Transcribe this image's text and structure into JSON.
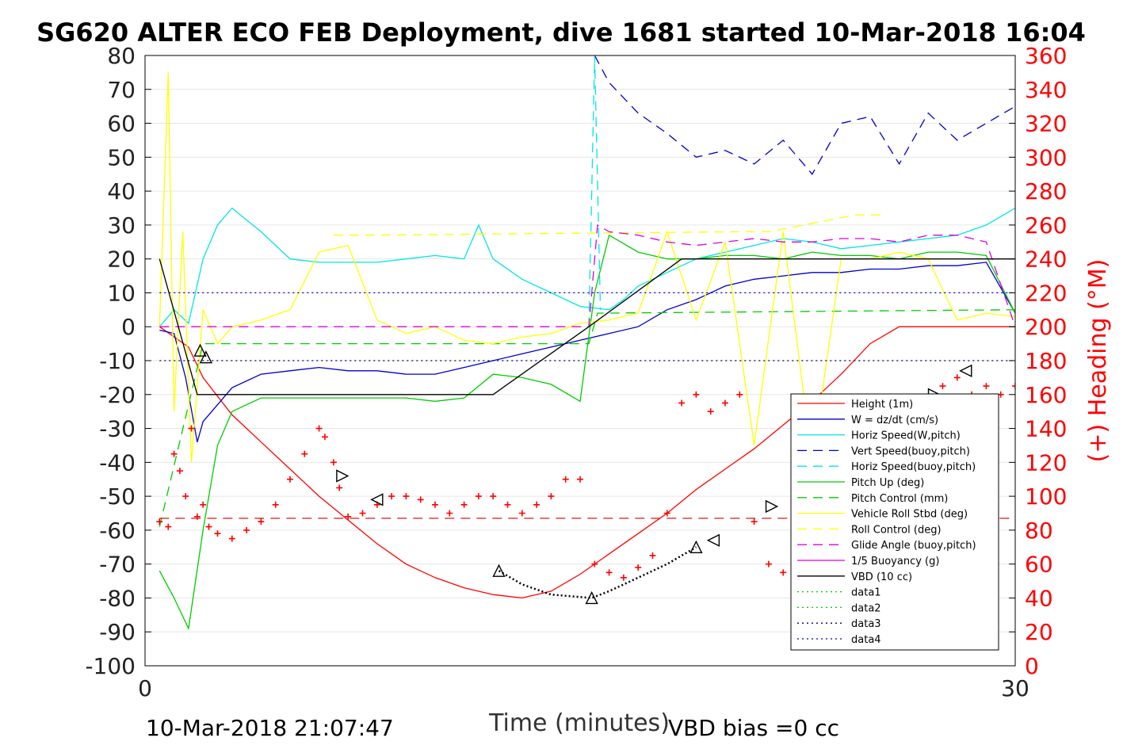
{
  "chart_data": {
    "type": "line",
    "title": "SG620 ALTER ECO FEB Deployment, dive 1681 started 10-Mar-2018 16:04",
    "xlabel": "Time (minutes)",
    "ylabel": "",
    "y2label": "(+) Heading (°M)",
    "xlim": [
      0,
      30
    ],
    "ylim": [
      -100,
      80
    ],
    "y2lim": [
      0,
      360
    ],
    "x_ticks": [
      "0",
      "30"
    ],
    "y_ticks": [
      "80",
      "70",
      "60",
      "50",
      "40",
      "30",
      "20",
      "10",
      "0",
      "-10",
      "-20",
      "-30",
      "-40",
      "-50",
      "-60",
      "-70",
      "-80",
      "-90",
      "-100"
    ],
    "y2_ticks": [
      "360",
      "340",
      "320",
      "300",
      "280",
      "260",
      "240",
      "220",
      "200",
      "180",
      "160",
      "140",
      "120",
      "100",
      "80",
      "60",
      "40",
      "20",
      "0"
    ],
    "grid": true,
    "legend_position": "bottom-right",
    "footer_left": "10-Mar-2018 21:07:47",
    "footer_right": "VBD bias =0 cc",
    "legend": [
      {
        "label": "Height (1m)",
        "color": "#ff0000",
        "style": "solid"
      },
      {
        "label": "W = dz/dt (cm/s)",
        "color": "#0000cc",
        "style": "solid"
      },
      {
        "label": "Horiz Speed(W,pitch)",
        "color": "#00e5e5",
        "style": "solid"
      },
      {
        "label": "Vert Speed(buoy,pitch)",
        "color": "#0000cc",
        "style": "dashed"
      },
      {
        "label": "Horiz Speed(buoy,pitch)",
        "color": "#00e5e5",
        "style": "dashed"
      },
      {
        "label": "Pitch Up (deg)",
        "color": "#00cc00",
        "style": "solid"
      },
      {
        "label": "Pitch Control (mm)",
        "color": "#00cc00",
        "style": "dashed"
      },
      {
        "label": "Vehicle Roll Stbd (deg)",
        "color": "#ffff00",
        "style": "solid"
      },
      {
        "label": "Roll Control (deg)",
        "color": "#ffff00",
        "style": "dashed"
      },
      {
        "label": "Glide Angle (buoy,pitch)",
        "color": "#dd00dd",
        "style": "dashed"
      },
      {
        "label": "1/5 Buoyancy (g)",
        "color": "#dd00dd",
        "style": "solid"
      },
      {
        "label": "VBD (10 cc)",
        "color": "#000000",
        "style": "solid"
      },
      {
        "label": "data1",
        "color": "#00cc00",
        "style": "dotted"
      },
      {
        "label": "data2",
        "color": "#00cc00",
        "style": "dotted"
      },
      {
        "label": "data3",
        "color": "#000066",
        "style": "dotted"
      },
      {
        "label": "data4",
        "color": "#0000cc",
        "style": "dotted"
      }
    ],
    "series": [
      {
        "key": "height",
        "color": "#ff0000",
        "style": "solid",
        "x": [
          0.5,
          1.5,
          2,
          3,
          4,
          5,
          6,
          7,
          8,
          9,
          10,
          11,
          12,
          13,
          14,
          15,
          16,
          17,
          18,
          19,
          20,
          21,
          22,
          23,
          24,
          25,
          26,
          27,
          28,
          29,
          30
        ],
        "y": [
          0,
          -6,
          -15,
          -26,
          -34,
          -42,
          -50,
          -57,
          -64,
          -70,
          -74,
          -77,
          -79,
          -80,
          -78,
          -73,
          -67,
          -61,
          -55,
          -48,
          -42,
          -36,
          -29,
          -22,
          -14,
          -5,
          0,
          0,
          0,
          0,
          0
        ]
      },
      {
        "key": "w",
        "color": "#0000cc",
        "style": "solid",
        "x": [
          0.5,
          1,
          1.4,
          1.8,
          2,
          2.5,
          3,
          4,
          5,
          6,
          7,
          8,
          9,
          10,
          11,
          12,
          13,
          14,
          15,
          16,
          17,
          18,
          19,
          20,
          21,
          22,
          23,
          24,
          25,
          26,
          27,
          28,
          29,
          30
        ],
        "y": [
          -1,
          -2,
          -15,
          -34,
          -28,
          -23,
          -18,
          -14,
          -13,
          -12,
          -13,
          -13,
          -14,
          -14,
          -12,
          -10,
          -8,
          -6,
          -4,
          -2,
          0,
          5,
          8,
          12,
          14,
          15,
          16,
          16,
          17,
          17,
          18,
          18,
          19,
          4
        ]
      },
      {
        "key": "horiz_w",
        "color": "#00e5e5",
        "style": "solid",
        "x": [
          0.5,
          1,
          1.5,
          2,
          2.5,
          3,
          4,
          5,
          6,
          7,
          8,
          9,
          10,
          11,
          11.5,
          12,
          13,
          14,
          15,
          16,
          16.5,
          17,
          18,
          19,
          20,
          21,
          22,
          23,
          24,
          25,
          26,
          27,
          28,
          29,
          30
        ],
        "y": [
          0,
          5,
          1,
          20,
          30,
          35,
          28,
          20,
          19,
          19,
          19,
          20,
          21,
          20,
          30,
          20,
          14,
          10,
          6,
          5,
          8,
          12,
          16,
          20,
          22,
          24,
          26,
          25,
          23,
          24,
          25,
          26,
          27,
          30,
          35
        ]
      },
      {
        "key": "vert_buoy",
        "color": "#0000cc",
        "style": "dashed",
        "x": [
          15.5,
          16,
          17,
          18,
          19,
          20,
          21,
          22,
          23,
          24,
          25,
          26,
          27,
          28,
          29,
          30
        ],
        "y": [
          80,
          72,
          63,
          57,
          50,
          52,
          48,
          55,
          45,
          60,
          62,
          48,
          63,
          55,
          60,
          65
        ]
      },
      {
        "key": "horiz_buoy",
        "color": "#00e5e5",
        "style": "dashed",
        "x": [
          15.3,
          15.5,
          15.7
        ],
        "y": [
          0,
          80,
          5
        ]
      },
      {
        "key": "pitch_up",
        "color": "#00cc00",
        "style": "solid",
        "x": [
          0.5,
          1,
          1.5,
          2,
          2.5,
          3,
          4,
          5,
          6,
          7,
          8,
          9,
          10,
          11,
          12,
          13,
          14,
          15,
          15.5,
          16,
          17,
          18,
          19,
          20,
          21,
          22,
          23,
          24,
          25,
          26,
          27,
          28,
          29,
          30
        ],
        "y": [
          -72,
          -80,
          -89,
          -60,
          -35,
          -25,
          -21,
          -21,
          -21,
          -21,
          -21,
          -21,
          -22,
          -21,
          -14,
          -15,
          -17,
          -22,
          10,
          27,
          22,
          20,
          20,
          21,
          21,
          20,
          22,
          21,
          21,
          20,
          22,
          22,
          21,
          4
        ]
      },
      {
        "key": "pitch_control",
        "color": "#00cc00",
        "style": "dashed",
        "x": [
          0.5,
          2,
          10,
          13,
          15.3,
          15.6,
          30
        ],
        "y": [
          -59,
          -5,
          -5,
          -5,
          -5,
          4,
          5
        ]
      },
      {
        "key": "roll",
        "color": "#ffff00",
        "style": "solid",
        "x": [
          0.5,
          0.8,
          1,
          1.3,
          1.6,
          2,
          2.5,
          3,
          4,
          5,
          6,
          7,
          8,
          9,
          10,
          11,
          12,
          13,
          14,
          15,
          16,
          17,
          18,
          19,
          20,
          21,
          22,
          23,
          24,
          25,
          26,
          27,
          28,
          29,
          30
        ],
        "y": [
          0,
          75,
          -25,
          28,
          -40,
          5,
          -5,
          0,
          2,
          5,
          22,
          24,
          2,
          -2,
          0,
          -4,
          -5,
          -3,
          -2,
          1,
          2,
          4,
          28,
          2,
          25,
          -35,
          28,
          -40,
          20,
          20,
          22,
          20,
          2,
          4,
          3
        ]
      },
      {
        "key": "roll_control",
        "color": "#ffff00",
        "style": "dashed",
        "x": [
          6.5,
          7.5,
          20.5,
          21.5,
          24.5,
          25.5
        ],
        "y": [
          27,
          27,
          28,
          28,
          33,
          33
        ]
      },
      {
        "key": "glide",
        "color": "#dd00dd",
        "style": "dashed",
        "x": [
          0.5,
          15.3,
          15.6,
          16,
          17,
          18,
          19,
          20,
          21,
          22,
          23,
          24,
          25,
          26,
          27,
          28,
          29,
          30
        ],
        "y": [
          0,
          0,
          30,
          28,
          27,
          25,
          24,
          25,
          26,
          25,
          25,
          26,
          26,
          25,
          27,
          27,
          25,
          0
        ]
      },
      {
        "key": "vbd",
        "color": "#000000",
        "style": "solid",
        "x": [
          0.5,
          1.8,
          12,
          15.3,
          18.5,
          30
        ],
        "y": [
          20,
          -20,
          -20,
          0,
          20,
          20
        ]
      },
      {
        "key": "data3",
        "color": "#000066",
        "style": "dotted",
        "x": [
          0.5,
          30
        ],
        "y": [
          -10,
          -10
        ]
      },
      {
        "key": "data4",
        "color": "#0000cc",
        "style": "dotted",
        "x": [
          0.5,
          30
        ],
        "y": [
          10,
          10
        ]
      }
    ],
    "heading_mean": 87,
    "heading_points": {
      "x": [
        0.5,
        0.8,
        1,
        1.2,
        1.4,
        1.6,
        1.8,
        2,
        2.2,
        2.5,
        3,
        3.5,
        4,
        4.5,
        5,
        5.5,
        6,
        6.2,
        6.5,
        6.7,
        7,
        7.5,
        8,
        8.5,
        9,
        9.5,
        10,
        10.5,
        11,
        11.5,
        12,
        12.5,
        13,
        13.5,
        14,
        14.5,
        15,
        15.5,
        16,
        16.5,
        17,
        17.5,
        18,
        18.5,
        19,
        19.5,
        20,
        20.5,
        21,
        21.5,
        22,
        22.5,
        23,
        23.5,
        24,
        24.5,
        25,
        25.5,
        26,
        26.5,
        27,
        27.5,
        28,
        28.5,
        29,
        29.5,
        30
      ],
      "y": [
        85,
        82,
        125,
        115,
        100,
        140,
        88,
        95,
        82,
        78,
        75,
        80,
        85,
        95,
        110,
        125,
        140,
        135,
        120,
        105,
        88,
        90,
        95,
        100,
        100,
        98,
        95,
        90,
        95,
        100,
        100,
        95,
        90,
        95,
        100,
        110,
        110,
        60,
        55,
        52,
        58,
        65,
        90,
        155,
        160,
        150,
        155,
        160,
        85,
        60,
        55,
        62,
        65,
        60,
        55,
        50,
        60,
        115,
        150,
        140,
        155,
        165,
        170,
        160,
        165,
        160,
        165
      ]
    },
    "triangles": [
      {
        "x": 1.9,
        "y": -7,
        "dir": "up"
      },
      {
        "x": 2.1,
        "y": -9,
        "dir": "up"
      },
      {
        "x": 6.8,
        "y": -44,
        "dir": "right"
      },
      {
        "x": 8.0,
        "y": -51,
        "dir": "left"
      },
      {
        "x": 12.2,
        "y": -72,
        "dir": "up"
      },
      {
        "x": 15.4,
        "y": -80,
        "dir": "up"
      },
      {
        "x": 19.0,
        "y": -65,
        "dir": "up"
      },
      {
        "x": 19.6,
        "y": -63,
        "dir": "left"
      },
      {
        "x": 21.6,
        "y": -53,
        "dir": "right"
      },
      {
        "x": 22.5,
        "y": -47,
        "dir": "left"
      },
      {
        "x": 24.5,
        "y": -36,
        "dir": "right"
      },
      {
        "x": 25.5,
        "y": -31,
        "dir": "left"
      },
      {
        "x": 27.2,
        "y": -20,
        "dir": "right"
      },
      {
        "x": 28.3,
        "y": -13,
        "dir": "left"
      }
    ],
    "height_dotted": {
      "x": [
        12.2,
        13,
        14,
        15.4,
        16,
        17,
        18,
        19
      ],
      "y": [
        -72,
        -76,
        -79,
        -80,
        -78,
        -74,
        -70,
        -65
      ]
    }
  }
}
